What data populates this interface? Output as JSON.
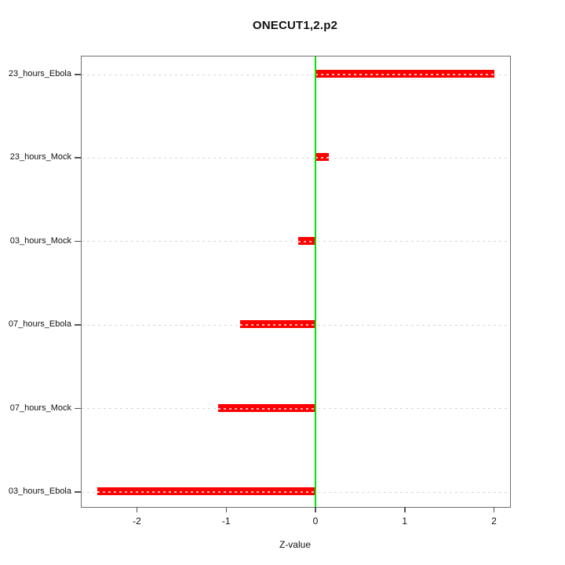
{
  "chart_data": {
    "type": "bar",
    "orientation": "horizontal",
    "title": "ONECUT1,2.p2",
    "xlabel": "Z-value",
    "ylabel": "",
    "categories": [
      "23_hours_Ebola",
      "23_hours_Mock",
      "03_hours_Mock",
      "07_hours_Ebola",
      "07_hours_Mock",
      "03_hours_Ebola"
    ],
    "values": [
      2.0,
      0.15,
      -0.19,
      -0.84,
      -1.09,
      -2.44
    ],
    "xlim": [
      -2.62,
      2.18
    ],
    "xticks": [
      -2,
      -1,
      0,
      1,
      2
    ],
    "xtick_labels": [
      "-2",
      "-1",
      "0",
      "1",
      "2"
    ],
    "grid": "dotted horizontal gridline per category",
    "legend": "none",
    "reference_line_x": 0,
    "colors": {
      "bar": "#ff0000",
      "zero_line": "#00e400",
      "gridline": "#d6d6d6",
      "box_border": "#6e6e6e",
      "text": "#111111"
    }
  }
}
